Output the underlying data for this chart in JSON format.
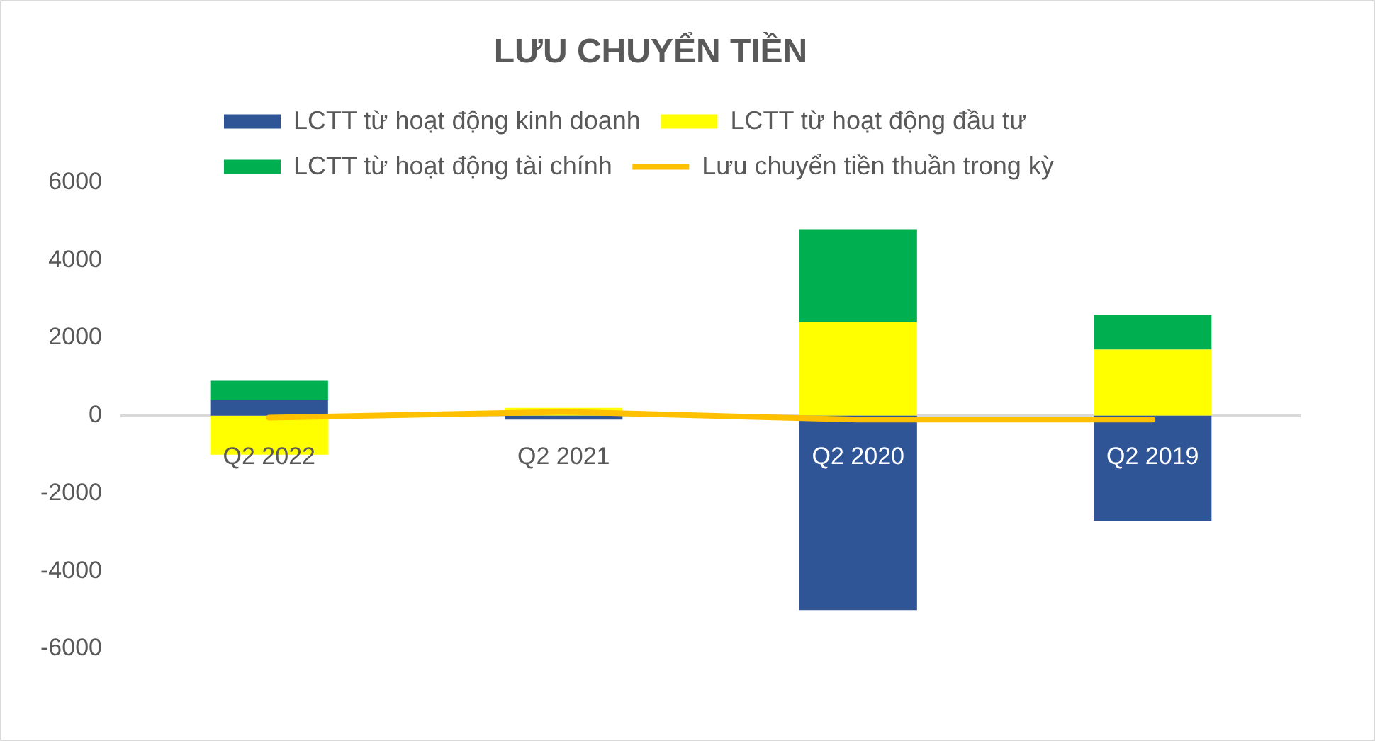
{
  "chart_data": {
    "type": "bar",
    "title": "LƯU CHUYỂN TIỀN",
    "categories": [
      "Q2 2022",
      "Q2 2021",
      "Q2 2020",
      "Q2 2019"
    ],
    "stacked": true,
    "series": [
      {
        "name": "LCTT từ hoạt động kinh doanh",
        "color": "#2f5597",
        "values": [
          400,
          -100,
          -5000,
          -2700
        ]
      },
      {
        "name": "LCTT từ hoạt động đầu tư",
        "color": "#ffff00",
        "values": [
          -1000,
          200,
          2400,
          1700
        ]
      },
      {
        "name": "LCTT từ hoạt động tài chính",
        "color": "#00b050",
        "values": [
          500,
          0,
          2400,
          900
        ]
      },
      {
        "name": "Lưu chuyển tiền thuần trong kỳ",
        "type": "line",
        "color": "#ffc000",
        "values": [
          -50,
          100,
          -100,
          -100
        ]
      }
    ],
    "ylim": [
      -6000,
      6000
    ],
    "yticks": [
      -6000,
      -4000,
      -2000,
      0,
      2000,
      4000,
      6000
    ],
    "grid": false,
    "legend": "top",
    "marker": "none"
  }
}
